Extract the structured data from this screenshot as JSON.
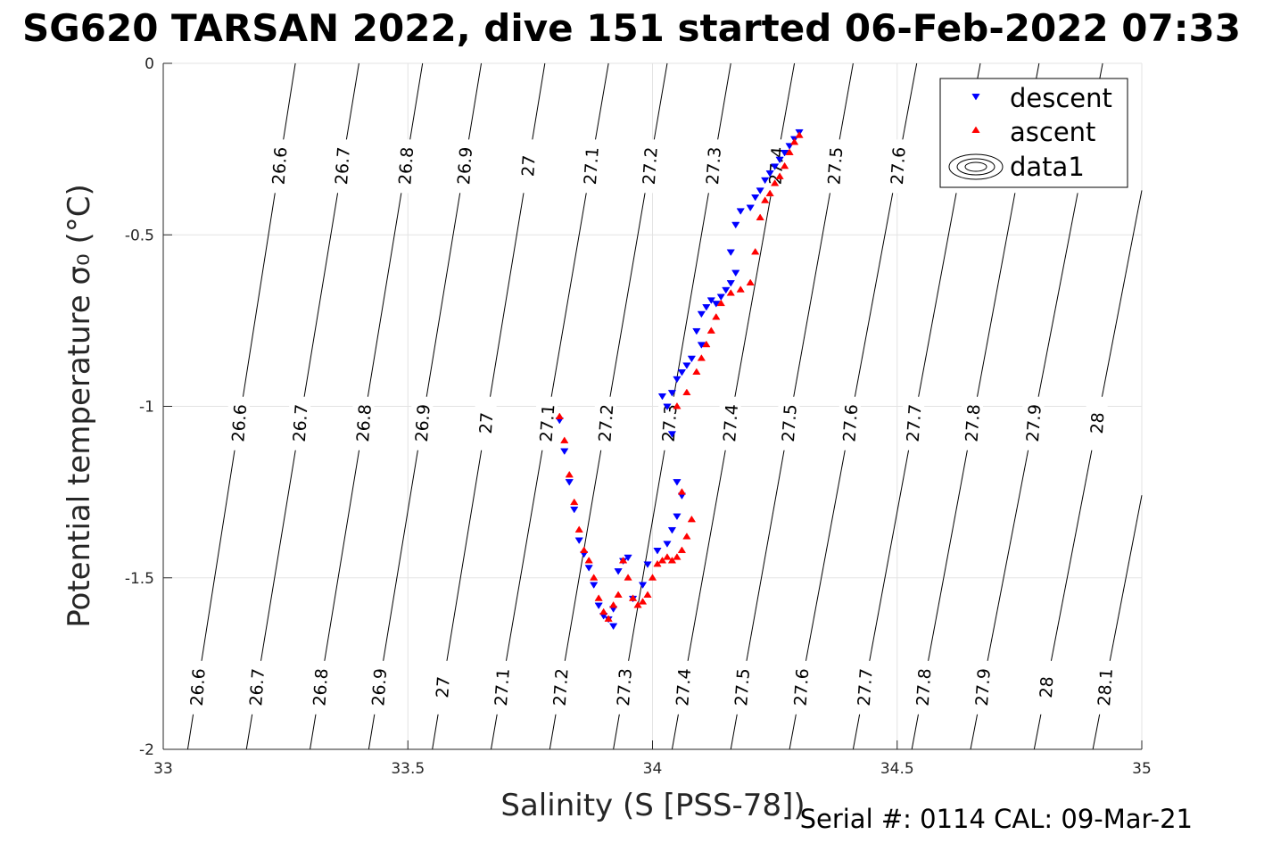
{
  "chart_data": {
    "type": "scatter",
    "title": "SG620 TARSAN 2022, dive 151 started 06-Feb-2022 07:33",
    "xlabel": "Salinity (S [PSS-78])",
    "ylabel": "Potential temperature σ₀ (°C)",
    "xlim": [
      33,
      35
    ],
    "ylim": [
      -2,
      0
    ],
    "xticks": [
      "33",
      "33.5",
      "34",
      "34.5",
      "35"
    ],
    "yticks": [
      "0",
      "-0.5",
      "-1",
      "-1.5",
      "-2"
    ],
    "grid": true,
    "legend_position": "top-right",
    "footer": "Serial #: 0114  CAL: 09-Mar-21",
    "density_contours": {
      "levels": [
        26.6,
        26.7,
        26.8,
        26.9,
        27,
        27.1,
        27.2,
        27.3,
        27.4,
        27.5,
        27.6,
        27.7,
        27.8,
        27.9,
        28,
        28.1
      ],
      "salinity_at_bottom": [
        33.05,
        33.17,
        33.3,
        33.42,
        33.55,
        33.67,
        33.79,
        33.92,
        34.04,
        34.16,
        34.28,
        34.41,
        34.53,
        34.65,
        34.78,
        34.9
      ],
      "salinity_at_top": [
        33.27,
        33.4,
        33.53,
        33.65,
        33.78,
        33.91,
        34.03,
        34.16,
        34.29,
        34.41,
        34.54,
        34.67,
        34.79,
        34.92,
        35.05,
        35.17
      ],
      "label_rows_y": [
        -0.3,
        -1.05,
        -1.82
      ]
    },
    "series": [
      {
        "name": "descent",
        "color": "#0000ff",
        "marker": "triangle-down",
        "x": [
          34.3,
          34.29,
          34.28,
          34.27,
          34.26,
          34.25,
          34.24,
          34.23,
          34.22,
          34.21,
          34.2,
          34.18,
          34.17,
          34.16,
          34.17,
          34.16,
          34.15,
          34.14,
          34.13,
          34.12,
          34.11,
          34.1,
          34.09,
          34.1,
          34.08,
          34.07,
          34.06,
          34.05,
          34.04,
          34.03,
          34.02,
          34.04,
          34.05,
          34.06,
          34.05,
          34.04,
          34.03,
          34.01,
          33.99,
          33.98,
          33.96,
          33.95,
          33.94,
          33.93,
          33.92,
          33.91,
          33.92,
          33.9,
          33.89,
          33.88,
          33.87,
          33.86,
          33.85,
          33.84,
          33.83,
          33.82,
          33.81
        ],
        "y": [
          -0.2,
          -0.22,
          -0.24,
          -0.26,
          -0.28,
          -0.3,
          -0.32,
          -0.34,
          -0.37,
          -0.39,
          -0.42,
          -0.43,
          -0.47,
          -0.55,
          -0.61,
          -0.64,
          -0.66,
          -0.68,
          -0.7,
          -0.69,
          -0.71,
          -0.73,
          -0.78,
          -0.82,
          -0.86,
          -0.88,
          -0.9,
          -0.92,
          -0.96,
          -1.0,
          -0.97,
          -1.08,
          -1.22,
          -1.26,
          -1.32,
          -1.36,
          -1.4,
          -1.42,
          -1.46,
          -1.52,
          -1.56,
          -1.44,
          -1.45,
          -1.48,
          -1.59,
          -1.62,
          -1.64,
          -1.61,
          -1.58,
          -1.52,
          -1.47,
          -1.43,
          -1.39,
          -1.3,
          -1.22,
          -1.13,
          -1.04
        ]
      },
      {
        "name": "ascent",
        "color": "#ff0000",
        "marker": "triangle-up",
        "x": [
          33.81,
          33.82,
          33.83,
          33.84,
          33.85,
          33.86,
          33.87,
          33.88,
          33.89,
          33.9,
          33.91,
          33.92,
          33.93,
          33.94,
          33.95,
          33.96,
          33.97,
          33.98,
          33.99,
          34.0,
          34.01,
          34.02,
          34.03,
          34.04,
          34.05,
          34.06,
          34.07,
          34.08,
          34.06,
          34.05,
          34.07,
          34.09,
          34.1,
          34.11,
          34.12,
          34.13,
          34.14,
          34.16,
          34.18,
          34.2,
          34.21,
          34.22,
          34.23,
          34.24,
          34.25,
          34.26,
          34.27,
          34.28,
          34.29,
          34.3
        ],
        "y": [
          -1.03,
          -1.1,
          -1.2,
          -1.28,
          -1.36,
          -1.42,
          -1.45,
          -1.5,
          -1.56,
          -1.6,
          -1.62,
          -1.58,
          -1.55,
          -1.45,
          -1.5,
          -1.56,
          -1.58,
          -1.57,
          -1.55,
          -1.5,
          -1.46,
          -1.45,
          -1.44,
          -1.45,
          -1.44,
          -1.42,
          -1.38,
          -1.33,
          -1.25,
          -1.0,
          -0.96,
          -0.9,
          -0.86,
          -0.82,
          -0.78,
          -0.74,
          -0.7,
          -0.67,
          -0.66,
          -0.64,
          -0.55,
          -0.45,
          -0.4,
          -0.38,
          -0.35,
          -0.33,
          -0.3,
          -0.26,
          -0.23,
          -0.21
        ]
      }
    ],
    "legend": [
      {
        "label": "descent",
        "marker": "triangle-down",
        "color": "#0000ff"
      },
      {
        "label": "ascent",
        "marker": "triangle-up",
        "color": "#ff0000"
      },
      {
        "label": "data1",
        "marker": "contour",
        "color": "#000000"
      }
    ]
  }
}
